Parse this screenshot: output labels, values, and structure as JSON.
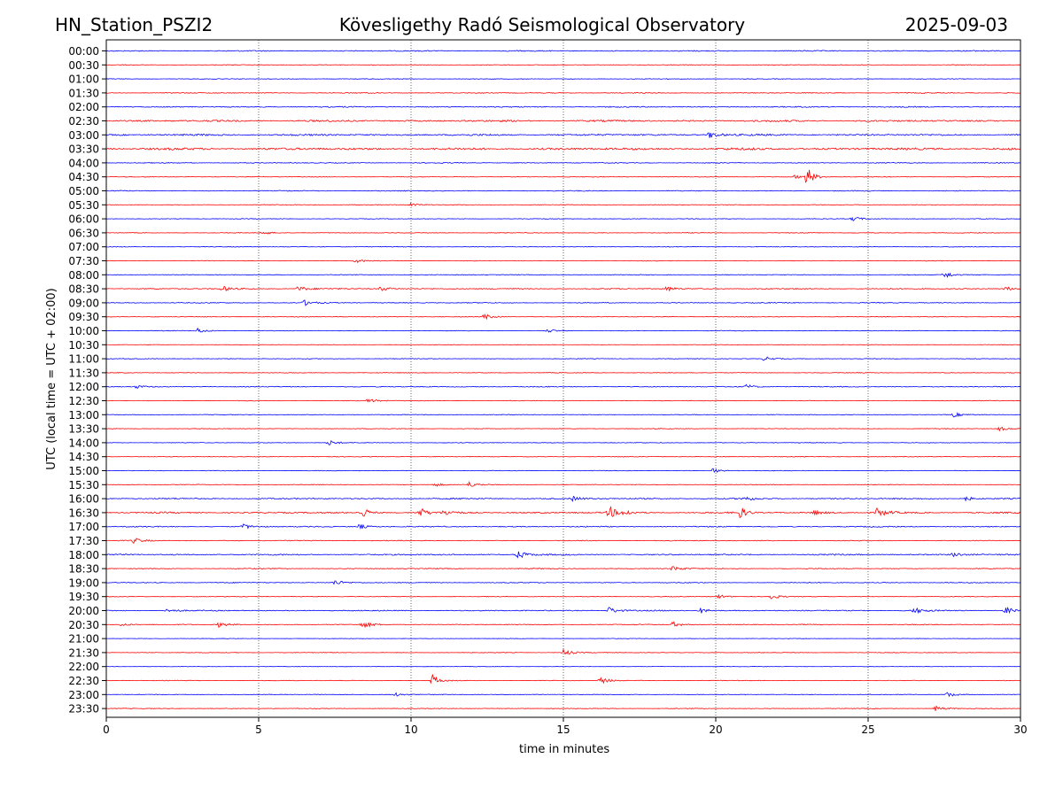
{
  "header": {
    "station": "HN_Station_PSZI2",
    "observatory": "Kövesligethy Radó Seismological Observatory",
    "date": "2025-09-03"
  },
  "chart_data": {
    "type": "line",
    "title": "Kövesligethy Radó Seismological Observatory",
    "xlabel": "time in minutes",
    "ylabel": "UTC (local time = UTC + 02:00)",
    "xlim": [
      0,
      30
    ],
    "xticks": [
      0,
      5,
      10,
      15,
      20,
      25,
      30
    ],
    "xtick_labels": [
      "0",
      "5",
      "10",
      "15",
      "20",
      "25",
      "30"
    ],
    "grid": "vertical dotted lines at each x tick",
    "colors": {
      "even_rows": "#0000ff",
      "odd_rows": "#ff0000"
    },
    "row_labels": [
      "00:00",
      "00:30",
      "01:00",
      "01:30",
      "02:00",
      "02:30",
      "03:00",
      "03:30",
      "04:00",
      "04:30",
      "05:00",
      "05:30",
      "06:00",
      "06:30",
      "07:00",
      "07:30",
      "08:00",
      "08:30",
      "09:00",
      "09:30",
      "10:00",
      "10:30",
      "11:00",
      "11:30",
      "12:00",
      "12:30",
      "13:00",
      "13:30",
      "14:00",
      "14:30",
      "15:00",
      "15:30",
      "16:00",
      "16:30",
      "17:00",
      "17:30",
      "18:00",
      "18:30",
      "19:00",
      "19:30",
      "20:00",
      "20:30",
      "21:00",
      "21:30",
      "22:00",
      "22:30",
      "23:00",
      "23:30"
    ],
    "row_noise_level": [
      0.5,
      0.3,
      0.3,
      0.4,
      0.5,
      0.8,
      0.8,
      1.0,
      0.4,
      0.3,
      0.4,
      0.3,
      0.3,
      0.3,
      0.3,
      0.3,
      0.3,
      0.5,
      0.4,
      0.3,
      0.3,
      0.2,
      0.3,
      0.3,
      0.4,
      0.3,
      0.3,
      0.3,
      0.3,
      0.3,
      0.3,
      0.3,
      0.6,
      0.7,
      0.5,
      0.4,
      0.6,
      0.4,
      0.4,
      0.3,
      0.5,
      0.4,
      0.2,
      0.3,
      0.2,
      0.3,
      0.3,
      0.3
    ],
    "events": [
      {
        "row": "03:00",
        "minute": 19.8,
        "amplitude": 4
      },
      {
        "row": "04:30",
        "minute": 23.0,
        "amplitude": 12
      },
      {
        "row": "04:30",
        "minute": 22.6,
        "amplitude": 2
      },
      {
        "row": "05:30",
        "minute": 10.0,
        "amplitude": 2
      },
      {
        "row": "06:00",
        "minute": 24.5,
        "amplitude": 3
      },
      {
        "row": "06:30",
        "minute": 5.1,
        "amplitude": 2.5
      },
      {
        "row": "07:30",
        "minute": 8.2,
        "amplitude": 2
      },
      {
        "row": "08:00",
        "minute": 27.5,
        "amplitude": 4
      },
      {
        "row": "08:30",
        "minute": 3.8,
        "amplitude": 3
      },
      {
        "row": "08:30",
        "minute": 6.3,
        "amplitude": 3
      },
      {
        "row": "08:30",
        "minute": 9.0,
        "amplitude": 3
      },
      {
        "row": "08:30",
        "minute": 18.4,
        "amplitude": 3
      },
      {
        "row": "08:30",
        "minute": 29.5,
        "amplitude": 2.5
      },
      {
        "row": "09:00",
        "minute": 6.5,
        "amplitude": 3
      },
      {
        "row": "09:30",
        "minute": 12.4,
        "amplitude": 3
      },
      {
        "row": "10:00",
        "minute": 3.0,
        "amplitude": 3
      },
      {
        "row": "10:00",
        "minute": 14.5,
        "amplitude": 2
      },
      {
        "row": "11:00",
        "minute": 21.6,
        "amplitude": 2.5
      },
      {
        "row": "12:00",
        "minute": 1.0,
        "amplitude": 2
      },
      {
        "row": "12:00",
        "minute": 21.0,
        "amplitude": 2.5
      },
      {
        "row": "12:30",
        "minute": 8.6,
        "amplitude": 2.5
      },
      {
        "row": "13:00",
        "minute": 27.8,
        "amplitude": 2.5
      },
      {
        "row": "13:30",
        "minute": 29.3,
        "amplitude": 2.5
      },
      {
        "row": "14:00",
        "minute": 7.3,
        "amplitude": 3
      },
      {
        "row": "15:00",
        "minute": 19.9,
        "amplitude": 2.5
      },
      {
        "row": "15:30",
        "minute": 11.9,
        "amplitude": 3
      },
      {
        "row": "15:30",
        "minute": 10.8,
        "amplitude": 2
      },
      {
        "row": "16:00",
        "minute": 15.3,
        "amplitude": 2.5
      },
      {
        "row": "16:00",
        "minute": 20.9,
        "amplitude": 2.5
      },
      {
        "row": "16:00",
        "minute": 28.2,
        "amplitude": 2.5
      },
      {
        "row": "16:30",
        "minute": 8.4,
        "amplitude": 7
      },
      {
        "row": "16:30",
        "minute": 10.3,
        "amplitude": 6
      },
      {
        "row": "16:30",
        "minute": 11.1,
        "amplitude": 3
      },
      {
        "row": "16:30",
        "minute": 16.5,
        "amplitude": 8
      },
      {
        "row": "16:30",
        "minute": 17.0,
        "amplitude": 3
      },
      {
        "row": "16:30",
        "minute": 20.8,
        "amplitude": 7
      },
      {
        "row": "16:30",
        "minute": 23.2,
        "amplitude": 3
      },
      {
        "row": "16:30",
        "minute": 25.3,
        "amplitude": 5
      },
      {
        "row": "17:00",
        "minute": 4.5,
        "amplitude": 3
      },
      {
        "row": "17:00",
        "minute": 8.3,
        "amplitude": 3
      },
      {
        "row": "17:30",
        "minute": 0.9,
        "amplitude": 3
      },
      {
        "row": "18:00",
        "minute": 13.5,
        "amplitude": 5
      },
      {
        "row": "18:00",
        "minute": 27.8,
        "amplitude": 2.5
      },
      {
        "row": "18:30",
        "minute": 18.6,
        "amplitude": 3
      },
      {
        "row": "19:00",
        "minute": 7.5,
        "amplitude": 3
      },
      {
        "row": "19:30",
        "minute": 20.1,
        "amplitude": 2.5
      },
      {
        "row": "19:30",
        "minute": 21.8,
        "amplitude": 3
      },
      {
        "row": "20:00",
        "minute": 2.0,
        "amplitude": 2.5
      },
      {
        "row": "20:00",
        "minute": 16.5,
        "amplitude": 4
      },
      {
        "row": "20:00",
        "minute": 19.5,
        "amplitude": 3
      },
      {
        "row": "20:00",
        "minute": 26.5,
        "amplitude": 3.5
      },
      {
        "row": "20:00",
        "minute": 29.5,
        "amplitude": 4
      },
      {
        "row": "20:30",
        "minute": 0.5,
        "amplitude": 2
      },
      {
        "row": "20:30",
        "minute": 3.7,
        "amplitude": 3
      },
      {
        "row": "20:30",
        "minute": 8.4,
        "amplitude": 4
      },
      {
        "row": "20:30",
        "minute": 18.6,
        "amplitude": 3
      },
      {
        "row": "21:30",
        "minute": 15.0,
        "amplitude": 4
      },
      {
        "row": "22:30",
        "minute": 10.7,
        "amplitude": 7
      },
      {
        "row": "22:30",
        "minute": 16.2,
        "amplitude": 4
      },
      {
        "row": "23:00",
        "minute": 27.6,
        "amplitude": 3
      },
      {
        "row": "23:00",
        "minute": 9.5,
        "amplitude": 2
      },
      {
        "row": "23:30",
        "minute": 27.2,
        "amplitude": 3
      }
    ]
  }
}
